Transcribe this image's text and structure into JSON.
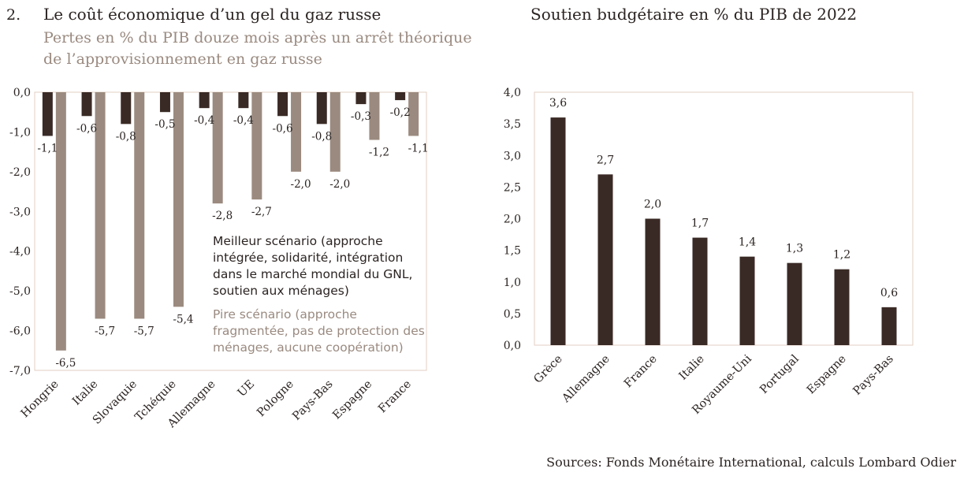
{
  "figure_number": "2.",
  "left_title": "Le coût économique d’un gel du gaz russe",
  "left_subtitle": "Pertes en % du PIB douze mois après un arrêt théorique de l’approvisionnement en gaz russe",
  "right_title": "Soutien budgétaire en % du PIB de 2022",
  "sources": "Sources: Fonds Monétaire International, calculs Lombard Odier",
  "legend": {
    "best": "Meilleur scénario (approche intégrée, solidarité, intégration dans le marché mondial du GNL, soutien aux ménages)",
    "worst": "Pire scénario (approche fragmentée, pas de protection des ménages, aucune coopération)"
  },
  "colors": {
    "dark": "#3a2a25",
    "light": "#9b8a7f",
    "axis": "#e3cfc3"
  },
  "chart_data": [
    {
      "type": "bar",
      "categories": [
        "Hongrie",
        "Italie",
        "Slovaquie",
        "Tchéquie",
        "Allemagne",
        "UE",
        "Pologne",
        "Pays-Bas",
        "Espagne",
        "France"
      ],
      "series": [
        {
          "name": "Meilleur scénario (approche intégrée, solidarité, intégration dans le marché mondial du GNL, soutien aux ménages)",
          "values": [
            -1.1,
            -0.6,
            -0.8,
            -0.5,
            -0.4,
            -0.4,
            -0.6,
            -0.8,
            -0.3,
            -0.2
          ],
          "labels": [
            "-1,1",
            "-0,6",
            "-0,8",
            "-0,5",
            "-0,4",
            "-0,4",
            "-0,6",
            "-0,8",
            "-0,3",
            "-0,2"
          ]
        },
        {
          "name": "Pire scénario (approche fragmentée, pas de protection des ménages, aucune coopération)",
          "values": [
            -6.5,
            -5.7,
            -5.7,
            -5.4,
            -2.8,
            -2.7,
            -2.0,
            -2.0,
            -1.2,
            -1.1
          ],
          "labels": [
            "-6,5",
            "-5,7",
            "-5,7",
            "-5,4",
            "-2,8",
            "-2,7",
            "-2,0",
            "-2,0",
            "-1,2",
            "-1,1"
          ]
        }
      ],
      "yticks": [
        "0,0",
        "-1,0",
        "-2,0",
        "-3,0",
        "-4,0",
        "-5,0",
        "-6,0",
        "-7,0"
      ],
      "ylim": [
        -7,
        0
      ]
    },
    {
      "type": "bar",
      "categories": [
        "Grèce",
        "Allemagne",
        "France",
        "Italie",
        "Royaume-Uni",
        "Portugal",
        "Espagne",
        "Pays-Bas"
      ],
      "values": [
        3.6,
        2.7,
        2.0,
        1.7,
        1.4,
        1.3,
        1.2,
        0.6
      ],
      "labels": [
        "3,6",
        "2,7",
        "2,0",
        "1,7",
        "1,4",
        "1,3",
        "1,2",
        "0,6"
      ],
      "yticks": [
        "0,0",
        "0,5",
        "1,0",
        "1,5",
        "2,0",
        "2,5",
        "3,0",
        "3,5",
        "4,0"
      ],
      "ylim": [
        0,
        4
      ]
    }
  ]
}
